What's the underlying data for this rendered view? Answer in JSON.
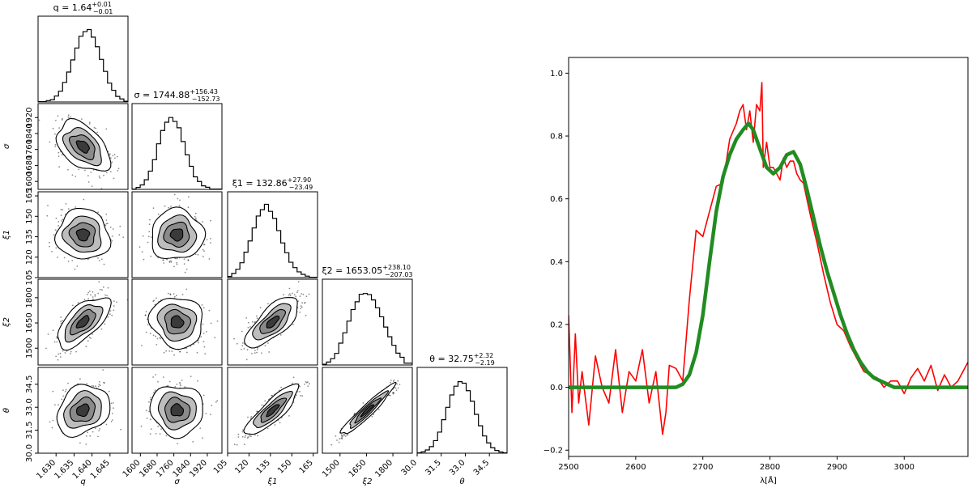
{
  "corner": {
    "parameters": [
      "q",
      "σ",
      "ξ1",
      "ξ2",
      "θ"
    ],
    "axis_labels": {
      "x": [
        "q",
        "σ",
        "ξ1",
        "ξ2",
        "θ"
      ],
      "y": [
        "",
        "σ",
        "ξ1",
        "ξ2",
        "θ"
      ]
    },
    "titles": [
      {
        "label": "q",
        "value": "1.64",
        "plus": "+0.01",
        "minus": "−0.01"
      },
      {
        "label": "σ",
        "value": "1744.88",
        "plus": "+156.43",
        "minus": "−152.73"
      },
      {
        "label": "ξ1",
        "value": "132.86",
        "plus": "+27.90",
        "minus": "−23.49"
      },
      {
        "label": "ξ2",
        "value": "1653.05",
        "plus": "+238.10",
        "minus": "−207.03"
      },
      {
        "label": "θ",
        "value": "32.75",
        "plus": "+2.32",
        "minus": "−2.19"
      }
    ],
    "ranges": [
      [
        1.625,
        1.65
      ],
      [
        1560,
        1990
      ],
      [
        105,
        168
      ],
      [
        1400,
        1910
      ],
      [
        30.0,
        35.6
      ]
    ],
    "ticks": [
      [
        "1.630",
        "1.635",
        "1.640",
        "1.645"
      ],
      [
        "1600",
        "1680",
        "1760",
        "1840",
        "1920"
      ],
      [
        "105",
        "120",
        "135",
        "150",
        "165"
      ],
      [
        "1500",
        "1650",
        "1800"
      ],
      [
        "30.0",
        "31.5",
        "33.0",
        "34.5"
      ]
    ],
    "tick_values": [
      [
        1.63,
        1.635,
        1.64,
        1.645
      ],
      [
        1600,
        1680,
        1760,
        1840,
        1920
      ],
      [
        105,
        120,
        135,
        150,
        165
      ],
      [
        1500,
        1650,
        1800
      ],
      [
        30.0,
        31.5,
        33.0,
        34.5
      ]
    ]
  },
  "chart_data": [
    {
      "type": "histogram",
      "title": "q = 1.64 +0.01 −0.01",
      "x": [
        1.627,
        1.629,
        1.631,
        1.633,
        1.635,
        1.637,
        1.639,
        1.641,
        1.643,
        1.645,
        1.647,
        1.649
      ],
      "values": [
        0.01,
        0.03,
        0.12,
        0.33,
        0.62,
        0.9,
        1.0,
        0.82,
        0.52,
        0.24,
        0.08,
        0.02
      ]
    },
    {
      "type": "histogram",
      "title": "σ = 1744.88 +156.43 −152.73",
      "x": [
        1580,
        1620,
        1660,
        1700,
        1740,
        1780,
        1820,
        1860,
        1900,
        1940
      ],
      "values": [
        0.01,
        0.08,
        0.32,
        0.76,
        0.99,
        0.88,
        0.5,
        0.18,
        0.05,
        0.01
      ]
    },
    {
      "type": "histogram",
      "title": "ξ1 = 132.86 +27.90 −23.49",
      "x": [
        108,
        114,
        120,
        126,
        132,
        138,
        144,
        150,
        156,
        162
      ],
      "values": [
        0.03,
        0.15,
        0.45,
        0.82,
        1.0,
        0.8,
        0.45,
        0.18,
        0.06,
        0.01
      ]
    },
    {
      "type": "histogram",
      "title": "ξ2 = 1653.05 +238.10 −207.03",
      "x": [
        1425,
        1475,
        1525,
        1575,
        1625,
        1675,
        1725,
        1775,
        1825,
        1875
      ],
      "values": [
        0.02,
        0.12,
        0.42,
        0.76,
        0.98,
        0.95,
        0.72,
        0.42,
        0.17,
        0.05
      ]
    },
    {
      "type": "histogram",
      "title": "θ = 32.75 +2.32 −2.19",
      "x": [
        30.3,
        30.8,
        31.3,
        31.8,
        32.3,
        32.8,
        33.3,
        33.8,
        34.3,
        34.8,
        35.3
      ],
      "values": [
        0.01,
        0.06,
        0.22,
        0.55,
        0.88,
        1.0,
        0.8,
        0.45,
        0.18,
        0.05,
        0.01
      ]
    },
    {
      "type": "line",
      "xlabel": "λ[Å]",
      "ylabel": "",
      "xlim": [
        2500,
        3095
      ],
      "ylim": [
        -0.22,
        1.05
      ],
      "xticks": [
        "2500",
        "2600",
        "2700",
        "2800",
        "2900",
        "3000"
      ],
      "yticks": [
        "−0.2",
        "0.0",
        "0.2",
        "0.4",
        "0.6",
        "0.8",
        "1.0"
      ],
      "series": [
        {
          "color": "#ff0000",
          "x": [
            2500,
            2505,
            2510,
            2515,
            2520,
            2530,
            2540,
            2550,
            2560,
            2570,
            2580,
            2590,
            2600,
            2610,
            2620,
            2630,
            2640,
            2645,
            2650,
            2660,
            2670,
            2680,
            2690,
            2700,
            2710,
            2720,
            2730,
            2740,
            2750,
            2755,
            2760,
            2765,
            2770,
            2775,
            2780,
            2785,
            2788,
            2790,
            2795,
            2800,
            2805,
            2810,
            2815,
            2820,
            2825,
            2830,
            2835,
            2840,
            2845,
            2850,
            2855,
            2860,
            2870,
            2880,
            2890,
            2900,
            2910,
            2920,
            2930,
            2940,
            2950,
            2960,
            2970,
            2980,
            2990,
            3000,
            3010,
            3020,
            3030,
            3040,
            3050,
            3060,
            3070,
            3080,
            3090,
            3095
          ],
          "y": [
            0.23,
            -0.08,
            0.17,
            -0.05,
            0.05,
            -0.12,
            0.1,
            0.0,
            -0.05,
            0.12,
            -0.08,
            0.05,
            0.02,
            0.12,
            -0.05,
            0.05,
            -0.15,
            -0.08,
            0.07,
            0.06,
            0.02,
            0.28,
            0.5,
            0.48,
            0.56,
            0.64,
            0.65,
            0.79,
            0.84,
            0.88,
            0.9,
            0.82,
            0.88,
            0.78,
            0.9,
            0.88,
            0.97,
            0.7,
            0.78,
            0.7,
            0.7,
            0.68,
            0.66,
            0.73,
            0.7,
            0.72,
            0.72,
            0.68,
            0.66,
            0.65,
            0.6,
            0.55,
            0.46,
            0.36,
            0.27,
            0.2,
            0.18,
            0.13,
            0.09,
            0.05,
            0.04,
            0.03,
            0.0,
            0.02,
            0.02,
            -0.02,
            0.03,
            0.06,
            0.02,
            0.07,
            -0.01,
            0.04,
            0.0,
            0.02,
            0.06,
            0.08
          ]
        },
        {
          "color": "#228b22",
          "x": [
            2500,
            2650,
            2660,
            2670,
            2680,
            2690,
            2700,
            2710,
            2720,
            2730,
            2740,
            2750,
            2760,
            2768,
            2775,
            2785,
            2795,
            2805,
            2815,
            2825,
            2835,
            2845,
            2855,
            2865,
            2875,
            2885,
            2895,
            2905,
            2915,
            2925,
            2935,
            2945,
            2955,
            2965,
            2975,
            2985,
            2995,
            3095
          ],
          "y": [
            0.0,
            0.0,
            0.0,
            0.01,
            0.04,
            0.11,
            0.23,
            0.4,
            0.56,
            0.67,
            0.74,
            0.79,
            0.82,
            0.84,
            0.82,
            0.76,
            0.7,
            0.68,
            0.7,
            0.74,
            0.75,
            0.71,
            0.63,
            0.54,
            0.45,
            0.37,
            0.3,
            0.23,
            0.17,
            0.12,
            0.08,
            0.05,
            0.03,
            0.02,
            0.01,
            0.0,
            0.0,
            0.0
          ]
        }
      ]
    }
  ]
}
